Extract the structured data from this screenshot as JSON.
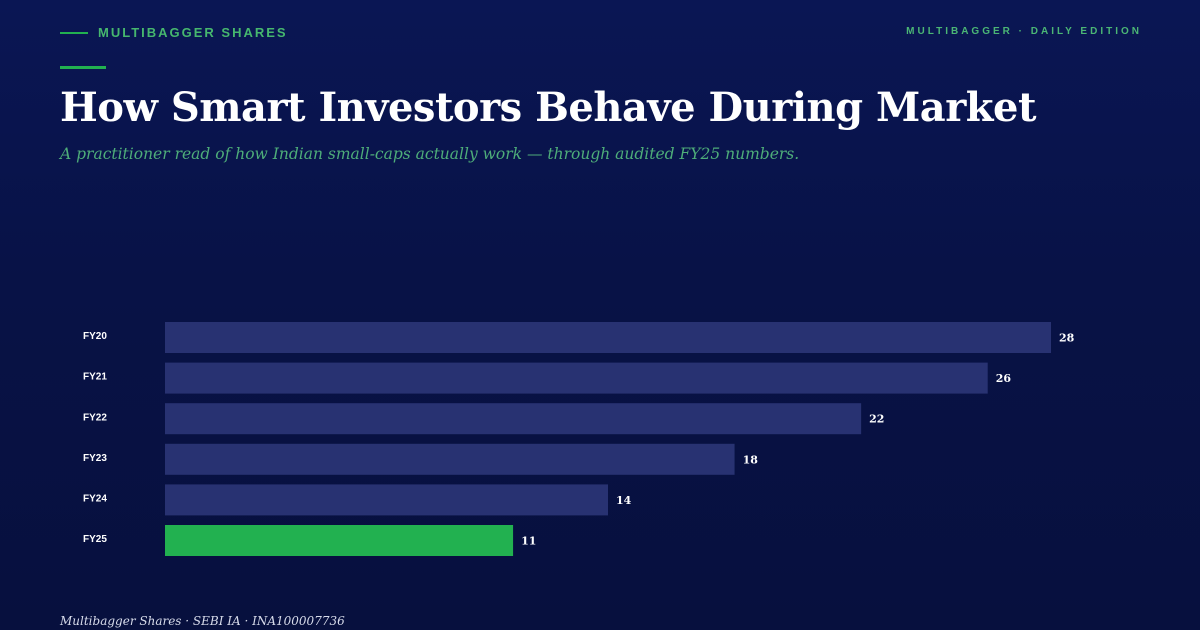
{
  "header": {
    "kicker": "MULTIBAGGER SHARES",
    "edition": "MULTIBAGGER · DAILY EDITION",
    "title": "How Smart Investors Behave During Market",
    "subtitle": "A practitioner read of how Indian small-caps actually work — through audited FY25 numbers."
  },
  "footer": {
    "text": "Multibagger Shares · SEBI IA · INA100007736"
  },
  "colors": {
    "background": "#081246",
    "accent": "#22b150",
    "bar": "#283272",
    "highlight_bar": "#22b150"
  },
  "chart_data": {
    "type": "bar",
    "orientation": "horizontal",
    "categories": [
      "FY20",
      "FY21",
      "FY22",
      "FY23",
      "FY24",
      "FY25"
    ],
    "values": [
      28,
      26,
      22,
      18,
      14,
      11
    ],
    "highlight": "FY25",
    "title": "",
    "xlabel": "",
    "ylabel": "",
    "xlim": [
      0,
      28
    ],
    "grid": false,
    "legend": "none"
  }
}
